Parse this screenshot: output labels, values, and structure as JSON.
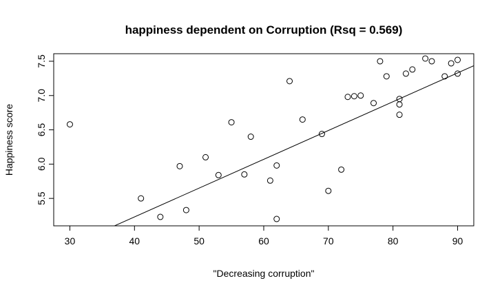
{
  "chart_data": {
    "type": "scatter",
    "title": "happiness dependent on Corruption (Rsq = 0.569)",
    "xlabel": "\"Decreasing corruption\"",
    "ylabel": "Happiness score",
    "xlim": [
      27.5,
      92.5
    ],
    "ylim": [
      5.1,
      7.61
    ],
    "xticks": [
      "30",
      "40",
      "50",
      "60",
      "70",
      "80",
      "90"
    ],
    "yticks": [
      "5.5",
      "6.0",
      "6.5",
      "7.0",
      "7.5"
    ],
    "grid": false,
    "legend": "none",
    "points": [
      {
        "x": 30,
        "y": 6.58
      },
      {
        "x": 41,
        "y": 5.5
      },
      {
        "x": 44,
        "y": 5.23
      },
      {
        "x": 47,
        "y": 5.97
      },
      {
        "x": 48,
        "y": 5.33
      },
      {
        "x": 51,
        "y": 6.1
      },
      {
        "x": 53,
        "y": 5.84
      },
      {
        "x": 55,
        "y": 6.61
      },
      {
        "x": 57,
        "y": 5.85
      },
      {
        "x": 58,
        "y": 6.4
      },
      {
        "x": 61,
        "y": 5.76
      },
      {
        "x": 62,
        "y": 5.98
      },
      {
        "x": 62,
        "y": 5.2
      },
      {
        "x": 64,
        "y": 7.21
      },
      {
        "x": 66,
        "y": 6.65
      },
      {
        "x": 69,
        "y": 6.44
      },
      {
        "x": 70,
        "y": 5.61
      },
      {
        "x": 72,
        "y": 5.92
      },
      {
        "x": 73,
        "y": 6.98
      },
      {
        "x": 74,
        "y": 6.99
      },
      {
        "x": 75,
        "y": 7.0
      },
      {
        "x": 77,
        "y": 6.89
      },
      {
        "x": 78,
        "y": 7.5
      },
      {
        "x": 79,
        "y": 7.28
      },
      {
        "x": 81,
        "y": 6.95
      },
      {
        "x": 81,
        "y": 6.87
      },
      {
        "x": 81,
        "y": 6.72
      },
      {
        "x": 82,
        "y": 7.32
      },
      {
        "x": 83,
        "y": 7.38
      },
      {
        "x": 85,
        "y": 7.54
      },
      {
        "x": 86,
        "y": 7.5
      },
      {
        "x": 88,
        "y": 7.28
      },
      {
        "x": 89,
        "y": 7.47
      },
      {
        "x": 90,
        "y": 7.52
      },
      {
        "x": 90,
        "y": 7.32
      }
    ],
    "regression_line": {
      "intercept": 3.55,
      "slope": 0.042
    },
    "colors": {
      "points": "#000000",
      "line": "#000000",
      "background": "#ffffff"
    }
  }
}
